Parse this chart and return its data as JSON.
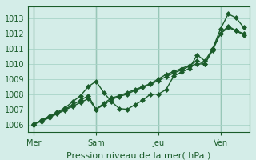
{
  "background_color": "#d4ede8",
  "grid_color": "#a8d4c8",
  "line_color": "#1a5c2a",
  "vline_color": "#4a8a6a",
  "xlabel": "Pression niveau de la mer( hPa )",
  "ylim": [
    1005.5,
    1013.8
  ],
  "yticks": [
    1006,
    1007,
    1008,
    1009,
    1010,
    1011,
    1012,
    1013
  ],
  "xtick_positions": [
    0,
    32,
    64,
    96
  ],
  "xtick_labels": [
    "Mer",
    "Sam",
    "Jeu",
    "Ven"
  ],
  "line1_x": [
    0,
    4,
    8,
    12,
    16,
    20,
    24,
    28,
    32,
    36,
    40,
    44,
    48,
    52,
    56,
    60,
    64,
    68,
    72,
    76,
    80,
    84,
    88,
    92,
    96,
    100,
    104,
    108
  ],
  "line1_y": [
    1006.0,
    1006.3,
    1006.55,
    1006.8,
    1007.1,
    1007.5,
    1007.9,
    1008.5,
    1008.85,
    1008.1,
    1007.5,
    1007.05,
    1007.0,
    1007.3,
    1007.6,
    1008.0,
    1008.0,
    1008.3,
    1009.2,
    1009.45,
    1009.7,
    1010.6,
    1010.2,
    1011.0,
    1012.3,
    1013.3,
    1013.05,
    1012.4
  ],
  "line2_x": [
    0,
    4,
    8,
    12,
    16,
    20,
    24,
    28,
    32,
    36,
    40,
    44,
    48,
    52,
    56,
    60,
    64,
    68,
    72,
    76,
    80,
    84,
    88,
    92,
    96,
    100,
    104,
    108
  ],
  "line2_y": [
    1006.0,
    1006.25,
    1006.5,
    1006.75,
    1007.0,
    1007.3,
    1007.6,
    1007.9,
    1007.0,
    1007.4,
    1007.75,
    1007.9,
    1008.1,
    1008.3,
    1008.5,
    1008.7,
    1009.0,
    1009.3,
    1009.5,
    1009.7,
    1009.9,
    1010.2,
    1010.0,
    1011.0,
    1012.0,
    1012.4,
    1012.2,
    1011.9
  ],
  "line3_x": [
    0,
    4,
    8,
    12,
    16,
    20,
    24,
    28,
    32,
    36,
    40,
    44,
    48,
    52,
    56,
    60,
    64,
    68,
    72,
    76,
    80,
    84,
    88,
    92,
    96,
    100,
    104,
    108
  ],
  "line3_y": [
    1006.05,
    1006.2,
    1006.45,
    1006.7,
    1006.95,
    1007.2,
    1007.45,
    1007.7,
    1007.0,
    1007.3,
    1007.65,
    1007.85,
    1008.0,
    1008.25,
    1008.45,
    1008.65,
    1008.9,
    1009.15,
    1009.4,
    1009.6,
    1009.85,
    1010.0,
    1010.0,
    1010.9,
    1012.0,
    1012.5,
    1012.2,
    1012.0
  ],
  "figsize": [
    3.2,
    2.0
  ],
  "dpi": 100,
  "xlabel_fontsize": 8,
  "tick_fontsize": 7,
  "marker_size": 4,
  "linewidth": 1.0
}
